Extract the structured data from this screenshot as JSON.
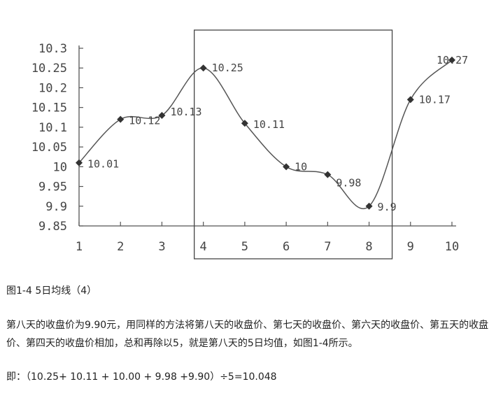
{
  "chart_data": {
    "type": "line",
    "x": [
      1,
      2,
      3,
      4,
      5,
      6,
      7,
      8,
      9,
      10
    ],
    "values": [
      10.01,
      10.12,
      10.13,
      10.25,
      10.11,
      10.0,
      9.98,
      9.9,
      10.17,
      10.27
    ],
    "point_labels": [
      "10.01",
      "10.12",
      "10.13",
      "10.25",
      "10.11",
      "10",
      "9.98",
      "9.9",
      "10.17",
      "10.27"
    ],
    "x_ticks": [
      "1",
      "2",
      "3",
      "4",
      "5",
      "6",
      "7",
      "8",
      "9",
      "10"
    ],
    "y_ticks": [
      "10.3",
      "10.25",
      "10.2",
      "10.15",
      "10.1",
      "10.05",
      "10",
      "9.95",
      "9.9",
      "9.85"
    ],
    "y_tick_values": [
      10.3,
      10.25,
      10.2,
      10.15,
      10.1,
      10.05,
      10.0,
      9.95,
      9.9,
      9.85
    ],
    "ylim": [
      9.85,
      10.3
    ],
    "xlim": [
      1,
      10
    ],
    "highlight_window": [
      4,
      8
    ],
    "grid": false,
    "title": "",
    "xlabel": "",
    "ylabel": "",
    "line_color": "#555555",
    "marker_color": "#333333"
  },
  "caption": "图1-4 5日均线（4）",
  "paragraph": "第八天的收盘价为9.90元，用同样的方法将第八天的收盘价、第七天的收盘价、第六天的收盘价、第五天的收盘价、第四天的收盘价相加，总和再除以5，就是第八天的5日均值，如图1-4所示。",
  "formula": "即：（10.25+ 10.11 + 10.00 + 9.98 +9.90）÷5=10.048"
}
